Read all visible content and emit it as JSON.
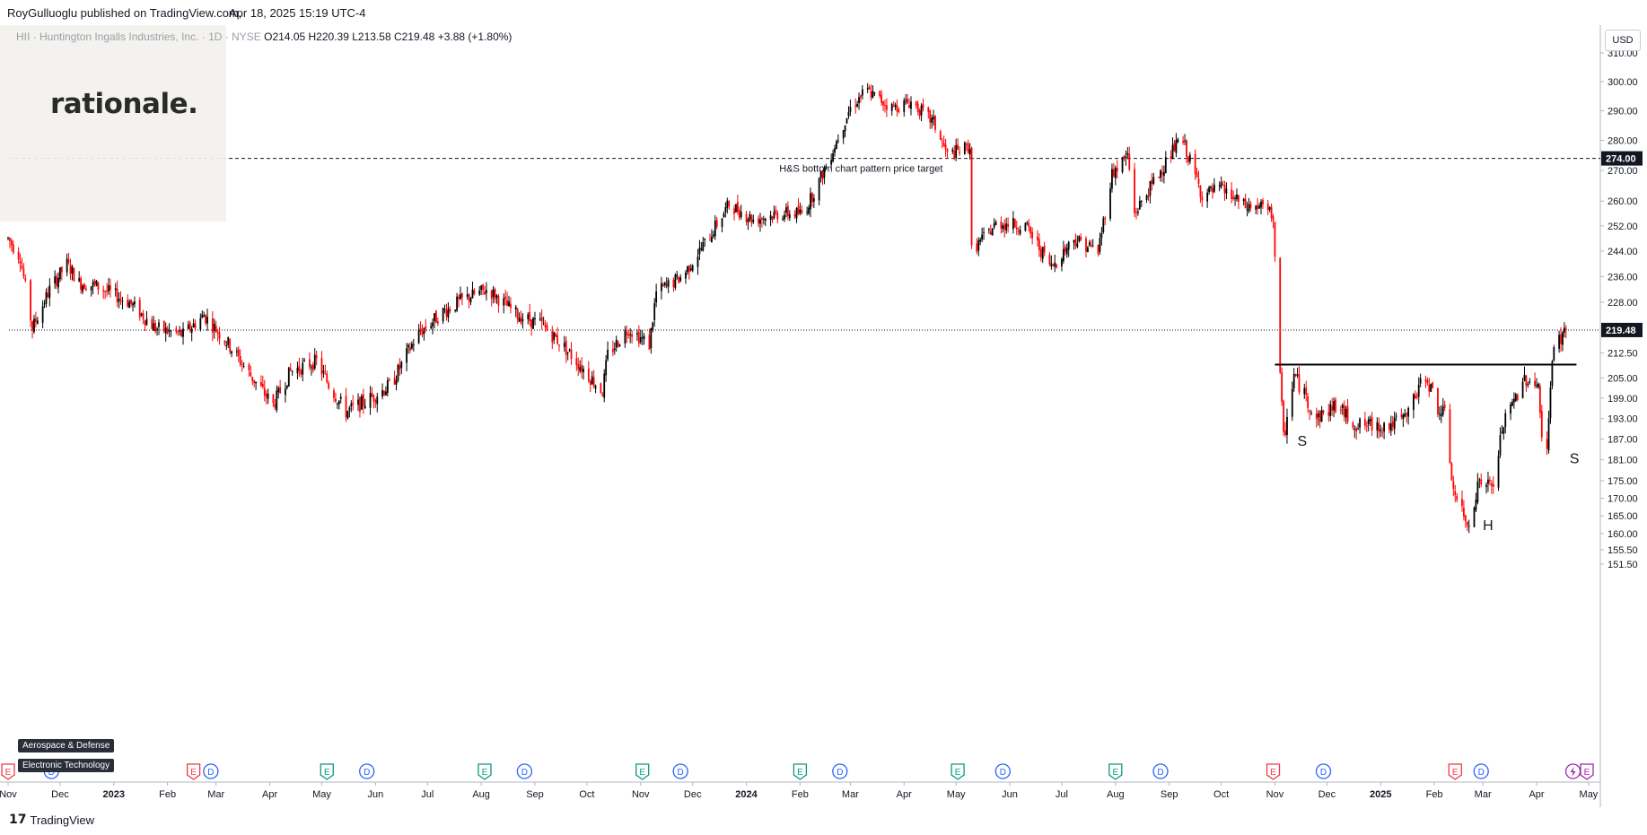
{
  "header": {
    "publisher": "RoyGulluoglu published on TradingView.com,",
    "timestamp": "Apr 18, 2025 15:19 UTC-4"
  },
  "legend": {
    "symbol_line": "HII · Huntington Ingalls Industries, Inc. · 1D · NYSE",
    "open": "O214.05",
    "high": "H220.39",
    "low": "L213.58",
    "close": "C219.48",
    "change": "+3.88 (+1.80%)"
  },
  "logo_text": "rationale.",
  "currency_button": "USD",
  "sector_tags": [
    "Aerospace & Defense",
    "Electronic Technology"
  ],
  "footer_brand": "TradingView",
  "colors": {
    "up": "#000000",
    "down": "#ff0000",
    "price_label_bg": "#131722",
    "event_earnings": "#f23645",
    "event_dividend": "#2962ff",
    "event_past_earnings": "#089981"
  },
  "chart_data": {
    "type": "candlestick",
    "symbol": "HII",
    "exchange": "NYSE",
    "interval": "1D",
    "y_axis_ticks": [
      310.0,
      300.0,
      290.0,
      280.0,
      270.0,
      260.0,
      252.0,
      244.0,
      236.0,
      228.0,
      219.48,
      212.5,
      205.0,
      199.0,
      193.0,
      187.0,
      181.0,
      175.0,
      170.0,
      165.0,
      160.0,
      155.5,
      151.5
    ],
    "y_axis_labels": [
      "310.00",
      "300.00",
      "290.00",
      "280.00",
      "270.00",
      "260.00",
      "252.00",
      "244.00",
      "236.00",
      "228.00",
      "212.50",
      "205.00",
      "199.00",
      "193.00",
      "187.00",
      "181.00",
      "175.00",
      "170.00",
      "165.00",
      "160.00",
      "155.50",
      "151.50"
    ],
    "x_axis_labels": [
      "Nov",
      "Dec",
      "2023",
      "Feb",
      "Mar",
      "Apr",
      "May",
      "Jun",
      "Jul",
      "Aug",
      "Sep",
      "Oct",
      "Nov",
      "Dec",
      "2024",
      "Feb",
      "Mar",
      "Apr",
      "May",
      "Jun",
      "Jul",
      "Aug",
      "Sep",
      "Oct",
      "Nov",
      "Dec",
      "2025",
      "Feb",
      "Mar",
      "Apr",
      "May"
    ],
    "last_price": "219.48",
    "target_price": "274.00",
    "annotations": {
      "target_label": "H&S bottom chart pattern price target",
      "left_shoulder": "S",
      "head": "H",
      "right_shoulder": "S"
    },
    "neckline_price": 209.0,
    "anchors": [
      [
        "2022-11-01",
        248
      ],
      [
        "2022-11-08",
        242
      ],
      [
        "2022-11-15",
        220
      ],
      [
        "2022-11-25",
        232
      ],
      [
        "2022-12-05",
        240
      ],
      [
        "2022-12-12",
        234
      ],
      [
        "2022-12-22",
        233
      ],
      [
        "2023-01-10",
        228
      ],
      [
        "2023-01-25",
        220
      ],
      [
        "2023-02-10",
        218
      ],
      [
        "2023-02-22",
        224
      ],
      [
        "2023-03-07",
        216
      ],
      [
        "2023-03-22",
        205
      ],
      [
        "2023-04-03",
        197
      ],
      [
        "2023-04-13",
        207
      ],
      [
        "2023-04-28",
        210
      ],
      [
        "2023-05-05",
        203
      ],
      [
        "2023-05-15",
        195
      ],
      [
        "2023-05-26",
        198
      ],
      [
        "2023-06-10",
        203
      ],
      [
        "2023-06-25",
        218
      ],
      [
        "2023-07-10",
        225
      ],
      [
        "2023-07-22",
        229
      ],
      [
        "2023-08-05",
        232
      ],
      [
        "2023-08-22",
        224
      ],
      [
        "2023-09-05",
        221
      ],
      [
        "2023-09-15",
        216
      ],
      [
        "2023-09-25",
        210
      ],
      [
        "2023-10-10",
        201
      ],
      [
        "2023-10-13",
        212
      ],
      [
        "2023-10-25",
        220
      ],
      [
        "2023-11-06",
        215
      ],
      [
        "2023-11-10",
        231
      ],
      [
        "2023-11-25",
        236
      ],
      [
        "2023-12-10",
        248
      ],
      [
        "2023-12-22",
        259
      ],
      [
        "2024-01-05",
        254
      ],
      [
        "2024-01-20",
        256
      ],
      [
        "2024-02-03",
        256
      ],
      [
        "2024-02-15",
        270
      ],
      [
        "2024-03-01",
        291
      ],
      [
        "2024-03-10",
        297
      ],
      [
        "2024-03-25",
        291
      ],
      [
        "2024-04-05",
        293
      ],
      [
        "2024-04-18",
        286
      ],
      [
        "2024-04-26",
        275
      ],
      [
        "2024-05-09",
        278
      ],
      [
        "2024-05-10",
        244
      ],
      [
        "2024-05-25",
        253
      ],
      [
        "2024-06-10",
        252
      ],
      [
        "2024-06-25",
        239
      ],
      [
        "2024-07-08",
        248
      ],
      [
        "2024-07-22",
        244
      ],
      [
        "2024-07-30",
        269
      ],
      [
        "2024-08-08",
        275
      ],
      [
        "2024-08-12",
        256
      ],
      [
        "2024-08-25",
        268
      ],
      [
        "2024-09-08",
        281
      ],
      [
        "2024-09-20",
        262
      ],
      [
        "2024-10-01",
        264
      ],
      [
        "2024-10-15",
        258
      ],
      [
        "2024-10-25",
        258
      ],
      [
        "2024-10-31",
        255
      ],
      [
        "2024-11-04",
        205
      ],
      [
        "2024-11-06",
        187
      ],
      [
        "2024-11-12",
        206
      ],
      [
        "2024-11-25",
        193
      ],
      [
        "2024-12-06",
        197
      ],
      [
        "2024-12-18",
        191
      ],
      [
        "2025-01-06",
        191
      ],
      [
        "2025-01-15",
        193
      ],
      [
        "2025-01-27",
        206
      ],
      [
        "2025-02-03",
        196
      ],
      [
        "2025-02-07",
        194
      ],
      [
        "2025-02-12",
        172
      ],
      [
        "2025-02-20",
        162
      ],
      [
        "2025-02-27",
        175
      ],
      [
        "2025-03-07",
        173
      ],
      [
        "2025-03-12",
        190
      ],
      [
        "2025-03-25",
        205
      ],
      [
        "2025-04-02",
        203
      ],
      [
        "2025-04-04",
        186
      ],
      [
        "2025-04-07",
        183
      ],
      [
        "2025-04-09",
        204
      ],
      [
        "2025-04-11",
        214
      ],
      [
        "2025-04-18",
        219.48
      ]
    ]
  }
}
